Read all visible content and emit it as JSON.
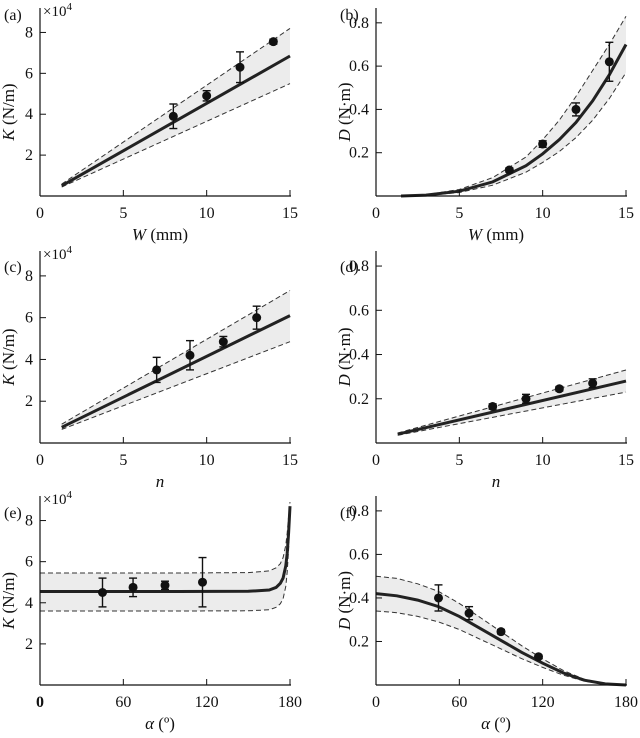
{
  "chart_data": [
    {
      "id": "a",
      "panel_label": "(a)",
      "type": "scatter",
      "xlabel_var": "W",
      "xlabel_unit": " (mm)",
      "ylabel_var": "K",
      "ylabel_unit": " (N/m)",
      "multiplier": {
        "base": "×10",
        "exp": "4"
      },
      "xlim": [
        0,
        15
      ],
      "ylim": [
        0,
        9
      ],
      "xticks": [
        0,
        5,
        10,
        15
      ],
      "xtick_labels": [
        "0",
        "5",
        "10",
        "15"
      ],
      "yticks": [
        2,
        4,
        6,
        8
      ],
      "ytick_labels": [
        "2",
        "4",
        "6",
        "8"
      ],
      "fit": {
        "x": [
          1.3,
          15
        ],
        "y": [
          0.5,
          6.85
        ]
      },
      "upper": {
        "x": [
          1.3,
          15
        ],
        "y": [
          0.58,
          8.2
        ]
      },
      "lower": {
        "x": [
          1.3,
          15
        ],
        "y": [
          0.44,
          5.5
        ]
      },
      "points": [
        {
          "x": 8,
          "y": 3.9,
          "err": 0.6
        },
        {
          "x": 10,
          "y": 4.9,
          "err": 0.25
        },
        {
          "x": 12,
          "y": 6.3,
          "err": 0.75
        },
        {
          "x": 14,
          "y": 7.55,
          "err": 0.12
        }
      ]
    },
    {
      "id": "b",
      "panel_label": "(b)",
      "type": "scatter",
      "xlabel_var": "W",
      "xlabel_unit": " (mm)",
      "ylabel_var": "D",
      "ylabel_unit": " (N·m)",
      "xlim": [
        0,
        15
      ],
      "ylim": [
        0,
        0.85
      ],
      "xticks": [
        0,
        5,
        10,
        15
      ],
      "xtick_labels": [
        "0",
        "5",
        "10",
        "15"
      ],
      "yticks": [
        0.2,
        0.4,
        0.6,
        0.8
      ],
      "ytick_labels": [
        "0.2",
        "0.4",
        "0.6",
        "0.8"
      ],
      "fit": {
        "x": [
          1.5,
          3,
          5,
          7,
          9,
          10,
          11,
          12,
          13,
          14,
          15
        ],
        "y": [
          0.0,
          0.004,
          0.022,
          0.065,
          0.14,
          0.195,
          0.26,
          0.34,
          0.44,
          0.56,
          0.7
        ]
      },
      "upper": {
        "x": [
          1.5,
          3,
          5,
          7,
          9,
          10,
          11,
          12,
          13,
          14,
          15
        ],
        "y": [
          0.0,
          0.006,
          0.03,
          0.085,
          0.18,
          0.26,
          0.35,
          0.46,
          0.58,
          0.7,
          0.83
        ]
      },
      "lower": {
        "x": [
          1.5,
          3,
          5,
          7,
          9,
          10,
          11,
          12,
          13,
          14,
          15
        ],
        "y": [
          0.0,
          0.003,
          0.016,
          0.05,
          0.11,
          0.155,
          0.205,
          0.27,
          0.35,
          0.45,
          0.57
        ]
      },
      "points": [
        {
          "x": 8,
          "y": 0.12,
          "err": 0.01
        },
        {
          "x": 10,
          "y": 0.24,
          "err": 0.015
        },
        {
          "x": 12,
          "y": 0.4,
          "err": 0.03
        },
        {
          "x": 14,
          "y": 0.62,
          "err": 0.09
        }
      ]
    },
    {
      "id": "c",
      "panel_label": "(c)",
      "type": "scatter",
      "xlabel_var": "n",
      "xlabel_unit": "",
      "ylabel_var": "K",
      "ylabel_unit": " (N/m)",
      "multiplier": {
        "base": "×10",
        "exp": "4"
      },
      "xlim": [
        0,
        15
      ],
      "ylim": [
        0,
        9
      ],
      "xticks": [
        0,
        5,
        10,
        15
      ],
      "xtick_labels": [
        "0",
        "5",
        "10",
        "15"
      ],
      "yticks": [
        2,
        4,
        6,
        8
      ],
      "ytick_labels": [
        "2",
        "4",
        "6",
        "8"
      ],
      "fit": {
        "x": [
          1.3,
          15
        ],
        "y": [
          0.75,
          6.1
        ]
      },
      "upper": {
        "x": [
          1.3,
          15
        ],
        "y": [
          0.9,
          7.3
        ]
      },
      "lower": {
        "x": [
          1.3,
          15
        ],
        "y": [
          0.65,
          4.85
        ]
      },
      "points": [
        {
          "x": 7,
          "y": 3.5,
          "err": 0.6
        },
        {
          "x": 9,
          "y": 4.2,
          "err": 0.7
        },
        {
          "x": 11,
          "y": 4.85,
          "err": 0.25
        },
        {
          "x": 13,
          "y": 6.0,
          "err": 0.55
        }
      ]
    },
    {
      "id": "d",
      "panel_label": "(d)",
      "type": "scatter",
      "xlabel_var": "n",
      "xlabel_unit": "",
      "ylabel_var": "D",
      "ylabel_unit": " (N·m)",
      "xlim": [
        0,
        15
      ],
      "ylim": [
        0,
        0.85
      ],
      "xticks": [
        0,
        5,
        10,
        15
      ],
      "xtick_labels": [
        "0",
        "5",
        "10",
        "15"
      ],
      "yticks": [
        0.2,
        0.4,
        0.6,
        0.8
      ],
      "ytick_labels": [
        "0.2",
        "0.4",
        "0.6",
        "0.8"
      ],
      "fit": {
        "x": [
          1.3,
          15
        ],
        "y": [
          0.04,
          0.28
        ]
      },
      "upper": {
        "x": [
          1.3,
          15
        ],
        "y": [
          0.045,
          0.33
        ]
      },
      "lower": {
        "x": [
          1.3,
          15
        ],
        "y": [
          0.035,
          0.23
        ]
      },
      "points": [
        {
          "x": 7,
          "y": 0.165,
          "err": 0.012
        },
        {
          "x": 9,
          "y": 0.2,
          "err": 0.02
        },
        {
          "x": 11,
          "y": 0.245,
          "err": 0.01
        },
        {
          "x": 13,
          "y": 0.27,
          "err": 0.02
        }
      ]
    },
    {
      "id": "e",
      "panel_label": "(e)",
      "type": "scatter",
      "xlabel_var": "α",
      "xlabel_unit": " (º)",
      "ylabel_var": "K",
      "ylabel_unit": " (N/m)",
      "multiplier": {
        "base": "×10",
        "exp": "4"
      },
      "xlim": [
        0,
        180
      ],
      "ylim": [
        0,
        9
      ],
      "xticks": [
        0,
        60,
        120,
        180
      ],
      "xtick_labels": [
        "0",
        "60",
        "120",
        "180"
      ],
      "yticks": [
        2,
        4,
        6,
        8
      ],
      "ytick_labels": [
        "2",
        "4",
        "6",
        "8"
      ],
      "fit": {
        "x": [
          0,
          100,
          150,
          165,
          170,
          173,
          175,
          177,
          178,
          179,
          180
        ],
        "y": [
          4.55,
          4.55,
          4.56,
          4.62,
          4.75,
          4.95,
          5.2,
          5.8,
          6.4,
          7.4,
          8.7
        ]
      },
      "upper": {
        "x": [
          0,
          100,
          150,
          165,
          170,
          173,
          175,
          177,
          178,
          179,
          180
        ],
        "y": [
          5.45,
          5.45,
          5.47,
          5.55,
          5.7,
          5.9,
          6.2,
          6.8,
          7.4,
          8.2,
          8.9
        ]
      },
      "lower": {
        "x": [
          0,
          100,
          150,
          165,
          170,
          173,
          175,
          177,
          178,
          179,
          180
        ],
        "y": [
          3.6,
          3.6,
          3.61,
          3.66,
          3.78,
          3.95,
          4.2,
          4.8,
          5.5,
          6.6,
          8.5
        ]
      },
      "points": [
        {
          "x": 45,
          "y": 4.5,
          "err": 0.7
        },
        {
          "x": 67,
          "y": 4.75,
          "err": 0.45
        },
        {
          "x": 90,
          "y": 4.85,
          "err": 0.2
        },
        {
          "x": 117,
          "y": 5.0,
          "err": 1.2
        }
      ]
    },
    {
      "id": "f",
      "panel_label": "(f)",
      "type": "scatter",
      "xlabel_var": "α",
      "xlabel_unit": " (º)",
      "ylabel_var": "D",
      "ylabel_unit": " (N·m)",
      "xlim": [
        0,
        180
      ],
      "ylim": [
        0,
        0.85
      ],
      "xticks": [
        0,
        60,
        120,
        180
      ],
      "xtick_labels": [
        "0",
        "60",
        "120",
        "180"
      ],
      "yticks": [
        0.2,
        0.4,
        0.6,
        0.8
      ],
      "ytick_labels": [
        "0.2",
        "0.4",
        "0.6",
        "0.8"
      ],
      "fit": {
        "x": [
          0,
          15,
          30,
          45,
          60,
          75,
          90,
          105,
          120,
          135,
          150,
          165,
          180
        ],
        "y": [
          0.42,
          0.41,
          0.39,
          0.36,
          0.315,
          0.26,
          0.205,
          0.15,
          0.1,
          0.055,
          0.022,
          0.005,
          0.0
        ]
      },
      "upper": {
        "x": [
          0,
          15,
          30,
          45,
          60,
          75,
          90,
          105,
          120,
          135,
          150,
          165,
          180
        ],
        "y": [
          0.5,
          0.49,
          0.465,
          0.43,
          0.375,
          0.31,
          0.245,
          0.18,
          0.12,
          0.066,
          0.026,
          0.006,
          0.0
        ]
      },
      "lower": {
        "x": [
          0,
          15,
          30,
          45,
          60,
          75,
          90,
          105,
          120,
          135,
          150,
          165,
          180
        ],
        "y": [
          0.34,
          0.332,
          0.315,
          0.29,
          0.255,
          0.21,
          0.166,
          0.121,
          0.081,
          0.045,
          0.018,
          0.004,
          0.0
        ]
      },
      "points": [
        {
          "x": 45,
          "y": 0.4,
          "err": 0.06
        },
        {
          "x": 67,
          "y": 0.33,
          "err": 0.03
        },
        {
          "x": 90,
          "y": 0.245,
          "err": 0.01
        },
        {
          "x": 117,
          "y": 0.13,
          "err": 0.008
        }
      ]
    }
  ]
}
